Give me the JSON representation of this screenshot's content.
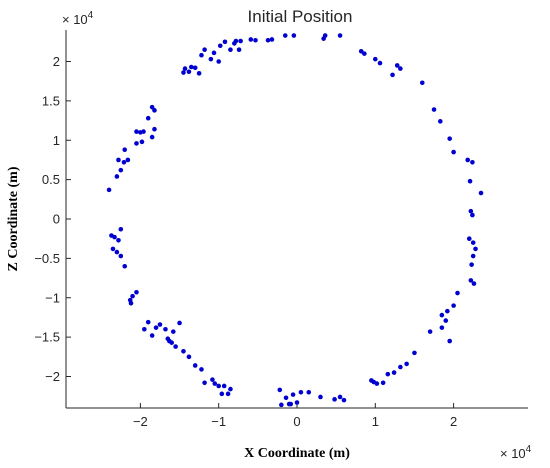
{
  "chart_data": {
    "type": "scatter",
    "title": "Initial Position",
    "xlabel": "X Coordinate (m)",
    "ylabel": "Z Coordinate (m)",
    "x_multiplier_label": "× 10",
    "x_multiplier_exponent": "4",
    "y_multiplier_label": "× 10",
    "y_multiplier_exponent": "4",
    "xlim": [
      -2.95,
      2.95
    ],
    "ylim": [
      -2.4,
      2.4
    ],
    "x_scale": 10000,
    "y_scale": 10000,
    "xticks": [
      -2,
      -1,
      0,
      1,
      2
    ],
    "xtick_labels": [
      "−2",
      "−1",
      "0",
      "1",
      "2"
    ],
    "yticks": [
      -2,
      -1.5,
      -1,
      -0.5,
      0,
      0.5,
      1,
      1.5,
      2
    ],
    "ytick_labels": [
      "−2",
      "−1.5",
      "−1",
      "−0.5",
      "0",
      "0.5",
      "1",
      "1.5",
      "2"
    ],
    "grid": false,
    "marker_color": "#0000d0",
    "series": [
      {
        "points": [
          [
            -0.15,
            2.33
          ],
          [
            -0.04,
            2.33
          ],
          [
            0.34,
            2.29
          ],
          [
            0.36,
            2.33
          ],
          [
            0.55,
            2.33
          ],
          [
            -0.59,
            2.28
          ],
          [
            -0.53,
            2.27
          ],
          [
            -0.37,
            2.27
          ],
          [
            -0.32,
            2.28
          ],
          [
            -0.98,
            2.2
          ],
          [
            -0.92,
            2.25
          ],
          [
            -0.8,
            2.23
          ],
          [
            -0.78,
            2.26
          ],
          [
            -0.72,
            2.26
          ],
          [
            -0.85,
            2.15
          ],
          [
            -0.74,
            2.15
          ],
          [
            -1.06,
            2.11
          ],
          [
            -1.22,
            2.08
          ],
          [
            -1.18,
            2.15
          ],
          [
            -1.1,
            2.03
          ],
          [
            -1.0,
            2.0
          ],
          [
            -1.45,
            1.86
          ],
          [
            -1.43,
            1.91
          ],
          [
            -1.38,
            1.87
          ],
          [
            -1.35,
            1.93
          ],
          [
            -1.25,
            1.85
          ],
          [
            -1.3,
            1.92
          ],
          [
            0.82,
            2.13
          ],
          [
            0.86,
            2.1
          ],
          [
            1.0,
            2.03
          ],
          [
            1.06,
            1.98
          ],
          [
            1.28,
            1.95
          ],
          [
            1.32,
            1.91
          ],
          [
            1.22,
            1.83
          ],
          [
            1.6,
            1.73
          ],
          [
            1.75,
            1.39
          ],
          [
            1.83,
            1.24
          ],
          [
            1.95,
            1.02
          ],
          [
            2.0,
            0.85
          ],
          [
            2.18,
            0.75
          ],
          [
            2.24,
            0.72
          ],
          [
            2.21,
            0.48
          ],
          [
            2.35,
            0.33
          ],
          [
            2.22,
            0.1
          ],
          [
            2.24,
            0.05
          ],
          [
            2.2,
            -0.25
          ],
          [
            2.25,
            -0.3
          ],
          [
            2.28,
            -0.38
          ],
          [
            2.25,
            -0.47
          ],
          [
            2.23,
            -0.58
          ],
          [
            2.22,
            -0.78
          ],
          [
            2.26,
            -0.82
          ],
          [
            2.05,
            -0.94
          ],
          [
            2.0,
            -1.1
          ],
          [
            1.92,
            -1.17
          ],
          [
            1.85,
            -1.22
          ],
          [
            1.9,
            -1.29
          ],
          [
            1.85,
            -1.38
          ],
          [
            1.7,
            -1.43
          ],
          [
            1.95,
            -1.55
          ],
          [
            1.5,
            -1.7
          ],
          [
            1.4,
            -1.84
          ],
          [
            1.32,
            -1.88
          ],
          [
            1.24,
            -1.95
          ],
          [
            1.16,
            -1.97
          ],
          [
            1.1,
            -2.08
          ],
          [
            1.02,
            -2.09
          ],
          [
            0.95,
            -2.05
          ],
          [
            0.98,
            -2.07
          ],
          [
            0.55,
            -2.26
          ],
          [
            0.6,
            -2.3
          ],
          [
            0.48,
            -2.29
          ],
          [
            0.3,
            -2.26
          ],
          [
            0.15,
            -2.2
          ],
          [
            0.05,
            -2.2
          ],
          [
            -0.05,
            -2.23
          ],
          [
            0.0,
            -2.33
          ],
          [
            -0.1,
            -2.35
          ],
          [
            -0.2,
            -2.36
          ],
          [
            -0.22,
            -2.17
          ],
          [
            -0.14,
            -2.27
          ],
          [
            -0.08,
            -2.35
          ],
          [
            -0.93,
            -2.12
          ],
          [
            -0.85,
            -2.16
          ],
          [
            -0.96,
            -2.22
          ],
          [
            -0.88,
            -2.22
          ],
          [
            -1.05,
            -2.09
          ],
          [
            -1.18,
            -2.08
          ],
          [
            -1.08,
            -2.04
          ],
          [
            -1.0,
            -2.12
          ],
          [
            -1.22,
            -1.91
          ],
          [
            -1.3,
            -1.86
          ],
          [
            -1.38,
            -1.75
          ],
          [
            -1.45,
            -1.68
          ],
          [
            -1.55,
            -1.62
          ],
          [
            -1.6,
            -1.57
          ],
          [
            -1.63,
            -1.55
          ],
          [
            -1.58,
            -1.43
          ],
          [
            -1.5,
            -1.32
          ],
          [
            -1.65,
            -1.52
          ],
          [
            -1.68,
            -1.4
          ],
          [
            -1.75,
            -1.34
          ],
          [
            -1.8,
            -1.38
          ],
          [
            -1.9,
            -1.31
          ],
          [
            -1.95,
            -1.4
          ],
          [
            -1.85,
            -1.48
          ],
          [
            -2.05,
            -0.93
          ],
          [
            -2.1,
            -0.98
          ],
          [
            -2.13,
            -1.03
          ],
          [
            -2.12,
            -1.07
          ],
          [
            -2.2,
            -0.6
          ],
          [
            -2.25,
            -0.47
          ],
          [
            -2.3,
            -0.42
          ],
          [
            -2.35,
            -0.38
          ],
          [
            -2.28,
            -0.27
          ],
          [
            -2.37,
            -0.21
          ],
          [
            -2.33,
            -0.23
          ],
          [
            -2.25,
            -0.13
          ],
          [
            -2.4,
            0.37
          ],
          [
            -2.3,
            0.54
          ],
          [
            -2.25,
            0.62
          ],
          [
            -2.21,
            0.72
          ],
          [
            -2.28,
            0.75
          ],
          [
            -2.16,
            0.75
          ],
          [
            -2.2,
            0.88
          ],
          [
            -2.05,
            0.96
          ],
          [
            -1.98,
            0.98
          ],
          [
            -2.05,
            1.11
          ],
          [
            -2.0,
            1.1
          ],
          [
            -1.96,
            1.11
          ],
          [
            -1.85,
            1.04
          ],
          [
            -1.82,
            1.14
          ],
          [
            -1.9,
            1.28
          ],
          [
            -1.82,
            1.38
          ],
          [
            -1.85,
            1.42
          ]
        ]
      }
    ]
  }
}
